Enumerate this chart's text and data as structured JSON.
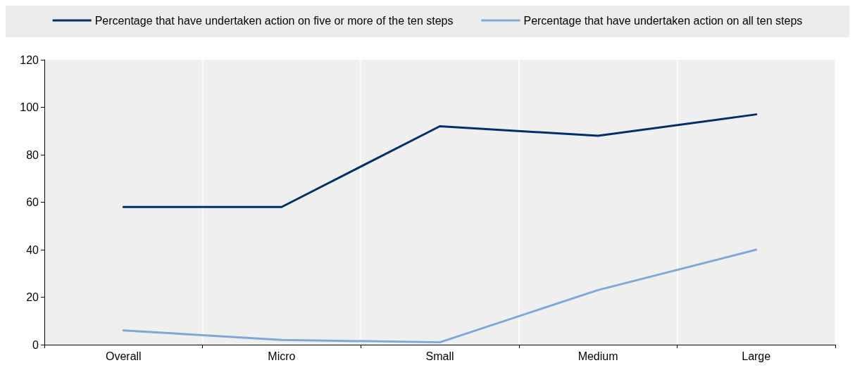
{
  "chart_data": {
    "type": "line",
    "categories": [
      "Overall",
      "Micro",
      "Small",
      "Medium",
      "Large"
    ],
    "series": [
      {
        "name": "Percentage that have undertaken action on five or more of the ten steps",
        "color": "#002f6c",
        "values": [
          58,
          58,
          92,
          88,
          97
        ]
      },
      {
        "name": "Percentage that have undertaken action on all ten steps",
        "color": "#7fa8d9",
        "values": [
          6,
          2,
          1,
          23,
          40
        ]
      }
    ],
    "ylim": [
      0,
      120
    ],
    "yticks": [
      0,
      20,
      40,
      60,
      80,
      100,
      120
    ],
    "grid": "x",
    "legend": "top",
    "marker": "none",
    "line_style": "solid"
  }
}
